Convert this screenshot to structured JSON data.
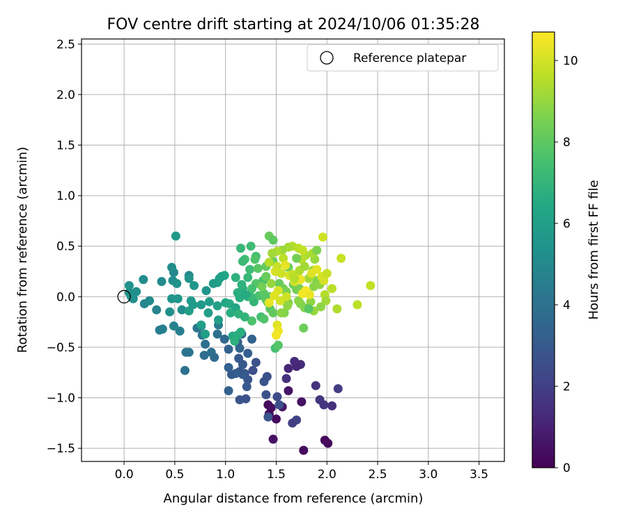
{
  "chart_data": {
    "type": "scatter",
    "title": "FOV centre drift starting at 2024/10/06 01:35:28",
    "xlabel": "Angular distance from reference (arcmin)",
    "ylabel": "Rotation from reference (arcmin)",
    "xlim": [
      -0.42,
      3.75
    ],
    "ylim": [
      -1.63,
      2.55
    ],
    "xticks": [
      "0.0",
      "0.5",
      "1.0",
      "1.5",
      "2.0",
      "2.5",
      "3.0",
      "3.5"
    ],
    "xtick_values": [
      0.0,
      0.5,
      1.0,
      1.5,
      2.0,
      2.5,
      3.0,
      3.5
    ],
    "yticks": [
      "−1.5",
      "−1.0",
      "−0.5",
      "0.0",
      "0.5",
      "1.0",
      "1.5",
      "2.0",
      "2.5"
    ],
    "ytick_values": [
      -1.5,
      -1.0,
      -0.5,
      0.0,
      0.5,
      1.0,
      1.5,
      2.0,
      2.5
    ],
    "grid": true,
    "legend": {
      "label": "Reference platepar",
      "placement": "top-right"
    },
    "reference_point": {
      "x": 0.0,
      "y": 0.0
    },
    "colorbar": {
      "label": "Hours from first FF file",
      "range": [
        0,
        10.7
      ],
      "ticks": [
        "0",
        "2",
        "4",
        "6",
        "8",
        "10"
      ],
      "tick_values": [
        0,
        2,
        4,
        6,
        8,
        10
      ],
      "colormap": "viridis"
    },
    "series": [
      {
        "points": [
          [
            1.42,
            -1.07,
            0.3
          ],
          [
            1.45,
            -1.1,
            0.4
          ],
          [
            1.43,
            -1.16,
            0.2
          ],
          [
            1.5,
            -1.21,
            0.3
          ],
          [
            1.47,
            -1.41,
            0.5
          ],
          [
            1.77,
            -1.52,
            0.3
          ],
          [
            1.98,
            -1.42,
            0.2
          ],
          [
            2.01,
            -1.45,
            0.3
          ],
          [
            1.75,
            -1.04,
            0.5
          ],
          [
            1.62,
            -0.93,
            0.6
          ],
          [
            1.56,
            -1.09,
            0.6
          ],
          [
            1.74,
            -0.67,
            1.4
          ],
          [
            1.68,
            -0.64,
            1.3
          ],
          [
            1.7,
            -0.69,
            1.2
          ],
          [
            1.62,
            -0.71,
            1.1
          ],
          [
            1.6,
            -0.81,
            1.5
          ],
          [
            1.89,
            -0.88,
            1.6
          ],
          [
            1.93,
            -1.02,
            1.6
          ],
          [
            1.97,
            -1.07,
            1.7
          ],
          [
            2.05,
            -1.08,
            1.5
          ],
          [
            2.11,
            -0.91,
            1.9
          ],
          [
            1.7,
            -1.22,
            2.1
          ],
          [
            1.66,
            -1.25,
            1.9
          ],
          [
            1.53,
            -1.07,
            2.6
          ],
          [
            1.42,
            -1.19,
            2.8
          ],
          [
            1.51,
            -0.99,
            2.4
          ],
          [
            1.4,
            -0.97,
            2.7
          ],
          [
            1.38,
            -0.84,
            2.8
          ],
          [
            1.41,
            -0.79,
            2.6
          ],
          [
            1.3,
            -0.65,
            2.7
          ],
          [
            1.27,
            -0.73,
            2.6
          ],
          [
            1.19,
            -0.76,
            2.9
          ],
          [
            1.22,
            -0.82,
            2.8
          ],
          [
            1.21,
            -0.89,
            3.0
          ],
          [
            1.17,
            -0.77,
            3.1
          ],
          [
            1.14,
            -0.74,
            2.9
          ],
          [
            1.1,
            -0.76,
            3.2
          ],
          [
            1.06,
            -0.77,
            3.1
          ],
          [
            1.03,
            -0.7,
            3.3
          ],
          [
            1.13,
            -0.61,
            3.0
          ],
          [
            1.17,
            -0.67,
            2.9
          ],
          [
            1.14,
            -1.02,
            2.8
          ],
          [
            1.2,
            -1.01,
            2.7
          ],
          [
            1.03,
            -0.93,
            3.3
          ],
          [
            1.03,
            -0.52,
            3.4
          ],
          [
            0.99,
            -0.42,
            3.6
          ],
          [
            1.26,
            -0.42,
            3.4
          ],
          [
            1.14,
            -0.51,
            3.5
          ],
          [
            1.12,
            -0.45,
            3.3
          ],
          [
            1.16,
            -0.37,
            3.6
          ],
          [
            1.22,
            -0.56,
            3.2
          ],
          [
            0.89,
            -0.6,
            3.7
          ],
          [
            0.79,
            -0.58,
            3.8
          ],
          [
            0.86,
            -0.55,
            3.9
          ],
          [
            0.8,
            -0.47,
            4.0
          ],
          [
            0.72,
            -0.31,
            4.2
          ],
          [
            0.77,
            -0.38,
            4.1
          ],
          [
            0.76,
            -0.29,
            4.3
          ],
          [
            0.92,
            -0.37,
            4.0
          ],
          [
            0.93,
            -0.28,
            4.4
          ],
          [
            0.61,
            -0.55,
            4.2
          ],
          [
            0.64,
            -0.55,
            4.1
          ],
          [
            0.6,
            -0.73,
            4.0
          ],
          [
            0.55,
            -0.34,
            4.6
          ],
          [
            0.49,
            -0.29,
            4.7
          ],
          [
            0.35,
            -0.33,
            4.5
          ],
          [
            0.38,
            -0.32,
            4.6
          ],
          [
            0.32,
            -0.13,
            4.8
          ],
          [
            0.2,
            -0.07,
            4.9
          ],
          [
            0.25,
            -0.04,
            5.0
          ],
          [
            0.09,
            -0.02,
            5.2
          ],
          [
            0.05,
            0.04,
            5.3
          ],
          [
            0.07,
            0.0,
            5.4
          ],
          [
            0.12,
            0.05,
            5.3
          ],
          [
            0.05,
            0.11,
            5.4
          ],
          [
            0.19,
            0.17,
            5.2
          ],
          [
            0.37,
            0.15,
            5.1
          ],
          [
            0.48,
            0.16,
            5.2
          ],
          [
            0.52,
            0.13,
            5.4
          ],
          [
            0.49,
            0.24,
            5.0
          ],
          [
            0.47,
            0.29,
            5.2
          ],
          [
            0.45,
            -0.15,
            5.3
          ],
          [
            0.47,
            -0.02,
            5.5
          ],
          [
            0.53,
            -0.02,
            5.6
          ],
          [
            0.57,
            -0.13,
            5.2
          ],
          [
            0.64,
            0.21,
            5.0
          ],
          [
            0.64,
            0.18,
            5.5
          ],
          [
            0.69,
            0.11,
            5.6
          ],
          [
            0.66,
            -0.04,
            5.8
          ],
          [
            0.64,
            -0.14,
            5.9
          ],
          [
            0.68,
            -0.08,
            5.8
          ],
          [
            0.76,
            -0.08,
            5.7
          ],
          [
            0.81,
            0.06,
            5.5
          ],
          [
            0.84,
            -0.05,
            5.9
          ],
          [
            0.83,
            -0.16,
            6.0
          ],
          [
            0.92,
            0.14,
            6.1
          ],
          [
            0.96,
            0.2,
            6.2
          ],
          [
            0.99,
            0.21,
            6.3
          ],
          [
            1.0,
            -0.06,
            6.4
          ],
          [
            1.04,
            -0.07,
            6.5
          ],
          [
            1.1,
            -0.11,
            6.3
          ],
          [
            1.07,
            -0.39,
            6.5
          ],
          [
            1.12,
            -0.38,
            6.6
          ],
          [
            1.15,
            -0.35,
            6.7
          ],
          [
            1.09,
            -0.44,
            6.8
          ],
          [
            0.51,
            0.6,
            5.7
          ],
          [
            0.93,
            -0.23,
            5.9
          ],
          [
            0.92,
            -0.09,
            6.1
          ],
          [
            0.76,
            -0.28,
            5.9
          ],
          [
            0.8,
            -0.37,
            6.0
          ],
          [
            1.14,
            -0.01,
            6.6
          ],
          [
            1.17,
            0.08,
            6.7
          ],
          [
            1.22,
            0.0,
            6.9
          ],
          [
            1.1,
            0.19,
            6.8
          ],
          [
            1.12,
            0.04,
            6.7
          ],
          [
            1.28,
            -0.05,
            7.0
          ],
          [
            1.22,
            0.19,
            7.1
          ],
          [
            1.24,
            0.27,
            7.3
          ],
          [
            1.19,
            0.37,
            7.4
          ],
          [
            1.17,
            0.35,
            7.2
          ],
          [
            1.15,
            0.48,
            7.1
          ],
          [
            1.25,
            0.5,
            7.3
          ],
          [
            1.3,
            0.4,
            7.5
          ],
          [
            1.37,
            0.16,
            7.6
          ],
          [
            1.3,
            0.13,
            7.8
          ],
          [
            1.26,
            0.08,
            7.5
          ],
          [
            1.33,
            0.01,
            7.6
          ],
          [
            1.4,
            -0.03,
            7.9
          ],
          [
            1.35,
            -0.2,
            7.4
          ],
          [
            1.26,
            -0.24,
            7.6
          ],
          [
            1.38,
            -0.22,
            7.7
          ],
          [
            1.49,
            -0.51,
            7.5
          ],
          [
            1.52,
            -0.48,
            7.8
          ],
          [
            1.44,
            -0.12,
            7.9
          ],
          [
            1.47,
            -0.16,
            8.1
          ],
          [
            1.42,
            -0.06,
            8.0
          ],
          [
            1.44,
            0.0,
            7.8
          ],
          [
            1.38,
            0.03,
            7.9
          ],
          [
            1.4,
            0.3,
            8.1
          ],
          [
            1.43,
            0.6,
            8.2
          ],
          [
            1.47,
            0.56,
            8.0
          ],
          [
            1.47,
            0.35,
            8.3
          ],
          [
            1.53,
            0.13,
            8.2
          ],
          [
            1.57,
            0.08,
            8.4
          ],
          [
            1.6,
            0.05,
            8.5
          ],
          [
            1.62,
            0.29,
            8.3
          ],
          [
            1.67,
            0.12,
            8.2
          ],
          [
            1.7,
            0.07,
            8.4
          ],
          [
            1.73,
            0.08,
            8.5
          ],
          [
            1.74,
            -0.07,
            8.6
          ],
          [
            1.78,
            -0.11,
            8.7
          ],
          [
            1.77,
            -0.31,
            8.3
          ],
          [
            1.72,
            -0.04,
            8.8
          ],
          [
            1.62,
            -0.06,
            8.7
          ],
          [
            1.58,
            -0.16,
            8.6
          ],
          [
            1.61,
            -0.09,
            8.9
          ],
          [
            1.55,
            -0.16,
            8.8
          ],
          [
            1.84,
            -0.05,
            8.9
          ],
          [
            1.87,
            -0.14,
            9.0
          ],
          [
            1.87,
            0.1,
            8.8
          ],
          [
            1.9,
            0.16,
            8.7
          ],
          [
            1.93,
            0.12,
            8.9
          ],
          [
            1.86,
            0.26,
            9.1
          ],
          [
            1.82,
            0.18,
            9.2
          ],
          [
            1.88,
            0.37,
            9.0
          ],
          [
            1.86,
            0.43,
            9.3
          ],
          [
            1.79,
            0.41,
            9.4
          ],
          [
            1.75,
            0.37,
            9.5
          ],
          [
            1.72,
            0.48,
            9.6
          ],
          [
            1.76,
            0.46,
            9.7
          ],
          [
            1.66,
            0.5,
            9.5
          ],
          [
            1.62,
            0.49,
            9.3
          ],
          [
            1.56,
            0.46,
            9.1
          ],
          [
            1.57,
            0.38,
            9.6
          ],
          [
            1.51,
            0.45,
            9.4
          ],
          [
            1.46,
            0.43,
            9.2
          ],
          [
            1.43,
            0.34,
            9.5
          ],
          [
            1.51,
            0.3,
            9.8
          ],
          [
            1.55,
            0.23,
            9.9
          ],
          [
            1.49,
            0.25,
            10.0
          ],
          [
            1.52,
            0.06,
            10.1
          ],
          [
            1.48,
            0.01,
            10.2
          ],
          [
            1.54,
            -0.04,
            10.0
          ],
          [
            1.43,
            -0.06,
            10.3
          ],
          [
            1.51,
            -0.28,
            10.2
          ],
          [
            1.52,
            -0.34,
            10.4
          ],
          [
            1.5,
            -0.38,
            10.5
          ],
          [
            1.59,
            0.31,
            10.3
          ],
          [
            1.63,
            0.21,
            10.1
          ],
          [
            1.68,
            0.15,
            10.0
          ],
          [
            1.71,
            0.22,
            10.2
          ],
          [
            1.74,
            0.17,
            10.4
          ],
          [
            1.76,
            0.03,
            10.5
          ],
          [
            1.79,
            0.06,
            10.6
          ],
          [
            1.83,
            0.02,
            10.4
          ],
          [
            1.85,
            0.23,
            10.2
          ],
          [
            1.9,
            0.27,
            10.3
          ],
          [
            1.95,
            0.2,
            10.1
          ],
          [
            1.97,
            0.16,
            10.0
          ],
          [
            2.0,
            0.23,
            9.8
          ],
          [
            1.98,
            0.02,
            9.5
          ],
          [
            1.99,
            -0.04,
            9.2
          ],
          [
            1.94,
            -0.1,
            8.9
          ],
          [
            2.05,
            0.08,
            9.6
          ],
          [
            2.1,
            -0.12,
            9.4
          ],
          [
            2.14,
            0.38,
            9.8
          ],
          [
            2.3,
            -0.08,
            9.6
          ],
          [
            2.43,
            0.11,
            9.7
          ],
          [
            1.96,
            0.59,
            9.9
          ],
          [
            1.9,
            0.46,
            8.6
          ],
          [
            1.7,
            0.38,
            8.4
          ],
          [
            1.82,
            -0.12,
            7.9
          ],
          [
            1.66,
            0.22,
            9.7
          ],
          [
            1.6,
            0.0,
            9.9
          ],
          [
            1.45,
            0.13,
            9.0
          ],
          [
            1.36,
            0.1,
            8.4
          ],
          [
            1.4,
            0.2,
            8.2
          ],
          [
            1.32,
            0.28,
            7.9
          ],
          [
            1.29,
            0.37,
            7.7
          ],
          [
            1.25,
            0.0,
            7.2
          ],
          [
            1.19,
            -0.2,
            7.0
          ],
          [
            1.05,
            -0.16,
            6.6
          ],
          [
            1.13,
            -0.17,
            6.9
          ],
          [
            1.16,
            0.12,
            6.9
          ],
          [
            1.2,
            0.02,
            6.5
          ],
          [
            0.94,
            0.18,
            6.0
          ],
          [
            0.88,
            0.13,
            5.8
          ],
          [
            1.68,
            0.18,
            9.5
          ],
          [
            1.73,
            0.26,
            9.4
          ],
          [
            1.78,
            0.3,
            9.2
          ]
        ]
      }
    ]
  }
}
